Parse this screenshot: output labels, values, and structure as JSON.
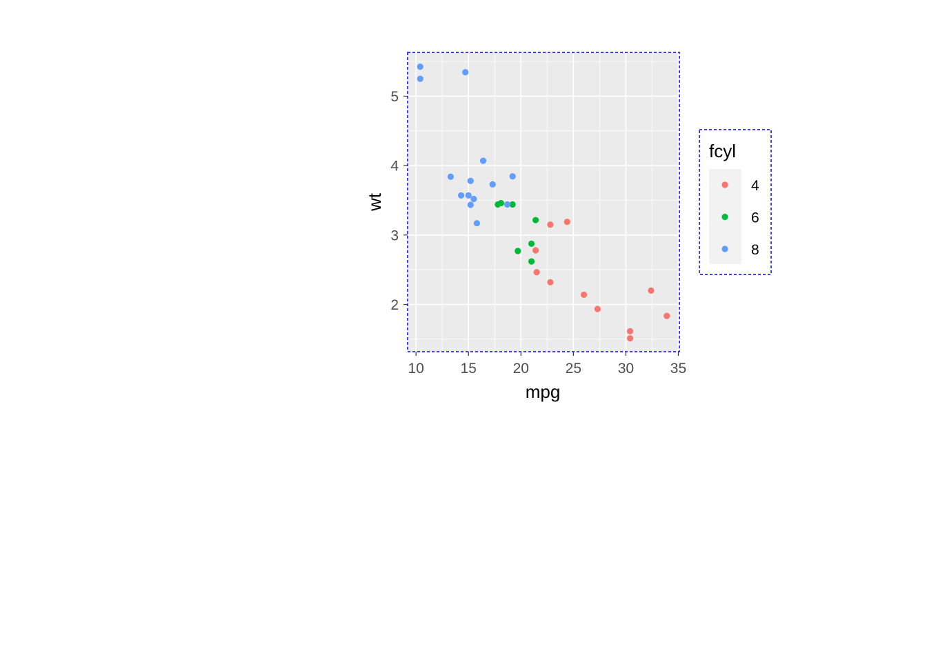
{
  "chart_data": {
    "type": "scatter",
    "title": "",
    "xlabel": "mpg",
    "ylabel": "wt",
    "xlim": [
      9.2,
      35.1
    ],
    "ylim": [
      1.32,
      5.63
    ],
    "xticks": [
      10,
      15,
      20,
      25,
      30,
      35
    ],
    "yticks": [
      2,
      3,
      4,
      5
    ],
    "grid": true,
    "legend": {
      "title": "fcyl",
      "placement": "right",
      "entries": [
        "4",
        "6",
        "8"
      ]
    },
    "colors": {
      "4": "#F8766D",
      "6": "#00BA38",
      "8": "#619CFF"
    },
    "series": [
      {
        "name": "4",
        "points": [
          [
            22.8,
            2.32
          ],
          [
            24.4,
            3.19
          ],
          [
            22.8,
            3.15
          ],
          [
            32.4,
            2.2
          ],
          [
            30.4,
            1.615
          ],
          [
            33.9,
            1.835
          ],
          [
            21.5,
            2.465
          ],
          [
            27.3,
            1.935
          ],
          [
            26.0,
            2.14
          ],
          [
            30.4,
            1.513
          ],
          [
            21.4,
            2.78
          ]
        ]
      },
      {
        "name": "6",
        "points": [
          [
            21.0,
            2.62
          ],
          [
            21.0,
            2.875
          ],
          [
            21.4,
            3.215
          ],
          [
            18.1,
            3.46
          ],
          [
            19.2,
            3.44
          ],
          [
            17.8,
            3.44
          ],
          [
            19.7,
            2.77
          ]
        ]
      },
      {
        "name": "8",
        "points": [
          [
            18.7,
            3.44
          ],
          [
            14.3,
            3.57
          ],
          [
            16.4,
            4.07
          ],
          [
            17.3,
            3.73
          ],
          [
            15.2,
            3.78
          ],
          [
            10.4,
            5.25
          ],
          [
            10.4,
            5.424
          ],
          [
            14.7,
            5.345
          ],
          [
            15.5,
            3.52
          ],
          [
            15.2,
            3.435
          ],
          [
            13.3,
            3.84
          ],
          [
            19.2,
            3.845
          ],
          [
            15.8,
            3.17
          ],
          [
            15.0,
            3.57
          ]
        ]
      }
    ]
  }
}
